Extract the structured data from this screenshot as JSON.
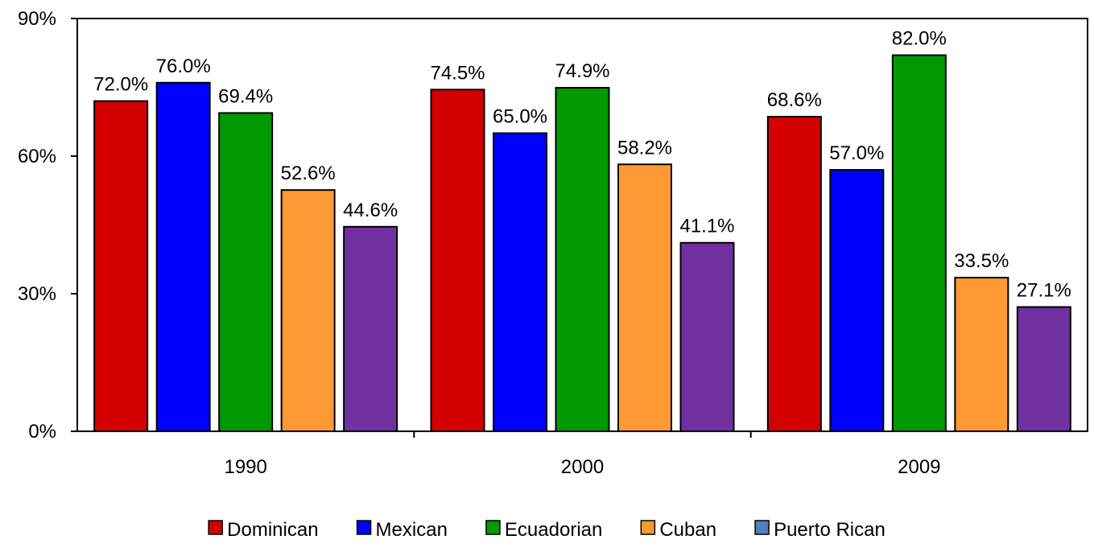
{
  "chart_data": {
    "type": "bar",
    "title": "",
    "xlabel": "",
    "ylabel": "",
    "categories": [
      "1990",
      "2000",
      "2009"
    ],
    "ylim": [
      0,
      90
    ],
    "yticks": [
      {
        "value": 0,
        "label": "0%"
      },
      {
        "value": 30,
        "label": "30%"
      },
      {
        "value": 60,
        "label": "60%"
      },
      {
        "value": 90,
        "label": "90%"
      }
    ],
    "grid": false,
    "legend_placement": "bottom-center",
    "series": [
      {
        "name": "Dominican",
        "color": "#d40000",
        "values": [
          72.0,
          74.5,
          68.6
        ],
        "labels": [
          "72.0%",
          "74.5%",
          "68.6%"
        ]
      },
      {
        "name": "Mexican",
        "color": "#0000ff",
        "values": [
          76.0,
          65.0,
          57.0
        ],
        "labels": [
          "76.0%",
          "65.0%",
          "57.0%"
        ]
      },
      {
        "name": "Ecuadorian",
        "color": "#009900",
        "values": [
          69.4,
          74.9,
          82.0
        ],
        "labels": [
          "69.4%",
          "74.9%",
          "82.0%"
        ]
      },
      {
        "name": "Cuban",
        "color": "#ff9933",
        "values": [
          52.6,
          58.2,
          33.5
        ],
        "labels": [
          "52.6%",
          "58.2%",
          "33.5%"
        ]
      },
      {
        "name": "Puerto Rican",
        "color": "#7030a0",
        "legend_color": "#4f81bd",
        "values": [
          44.6,
          41.1,
          27.1
        ],
        "labels": [
          "44.6%",
          "41.1%",
          "27.1%"
        ]
      }
    ]
  }
}
